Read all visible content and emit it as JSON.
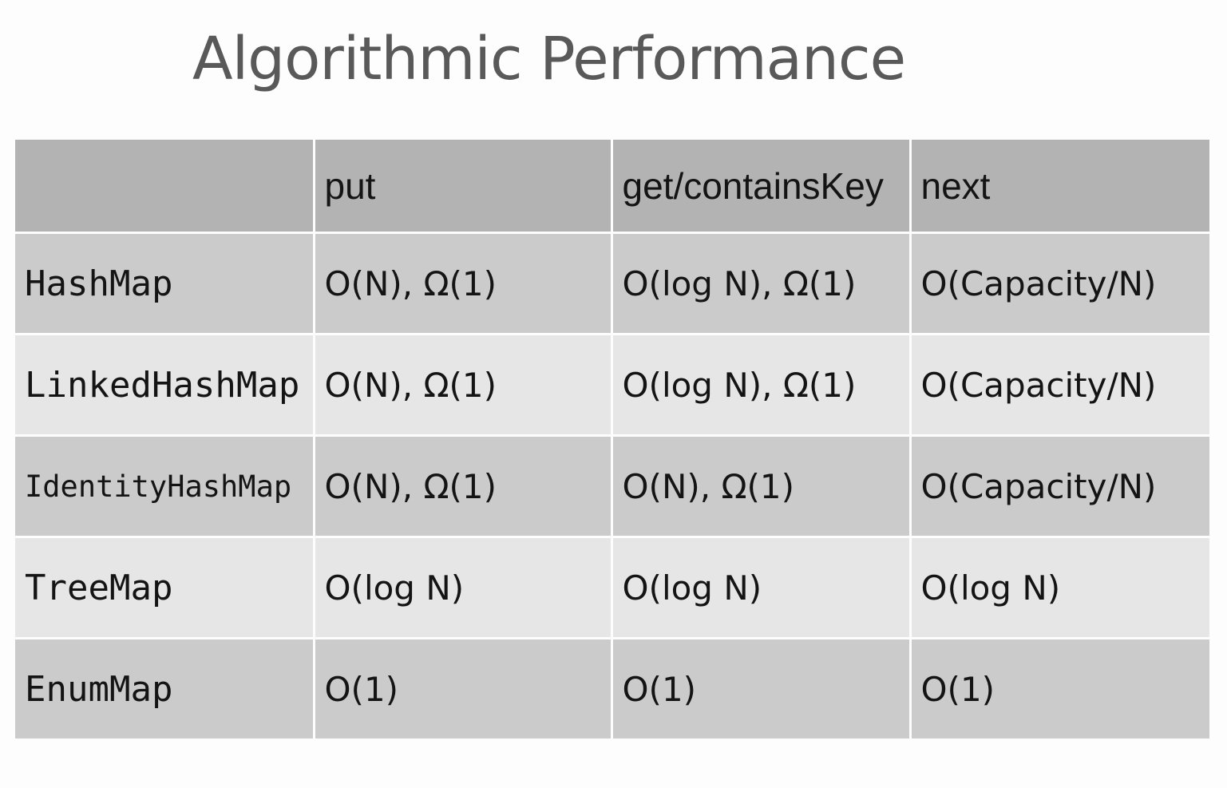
{
  "title": "Algorithmic Performance",
  "table": {
    "headers": [
      "",
      "put",
      "get/containsKey",
      "next"
    ],
    "rows": [
      {
        "name": "HashMap",
        "put": "O(N), Ω(1)",
        "get": "O(log N), Ω(1)",
        "next": "O(Capacity/N)"
      },
      {
        "name": "LinkedHashMap",
        "put": "O(N), Ω(1)",
        "get": "O(log N), Ω(1)",
        "next": "O(Capacity/N)"
      },
      {
        "name": "IdentityHashMap",
        "put": "O(N), Ω(1)",
        "get": "O(N), Ω(1)",
        "next": "O(Capacity/N)"
      },
      {
        "name": "TreeMap",
        "put": "O(log N)",
        "get": "O(log N)",
        "next": "O(log N)"
      },
      {
        "name": "EnumMap",
        "put": "O(1)",
        "get": "O(1)",
        "next": "O(1)"
      }
    ]
  },
  "colors": {
    "header_bg": "#b3b3b3",
    "row_dark_bg": "#cbcbcb",
    "row_light_bg": "#e6e6e6",
    "title_text": "#595959",
    "cell_text": "#141414"
  }
}
